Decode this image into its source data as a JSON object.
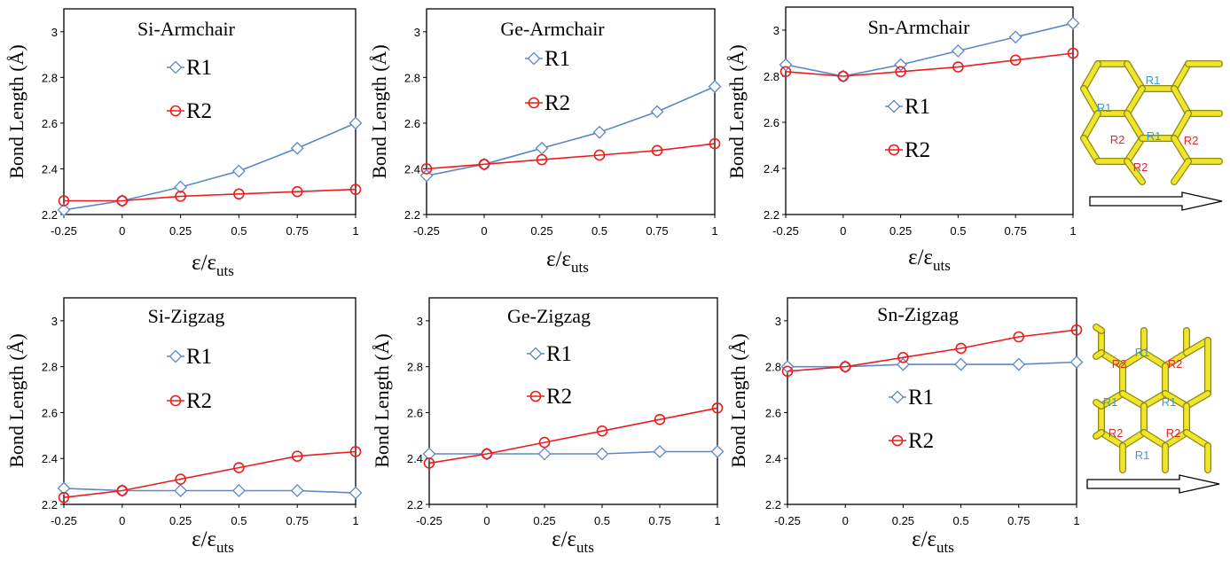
{
  "colors": {
    "R1": "#5b87c7",
    "R2": "#ee1c1c",
    "frame": "#000000",
    "honeycomb": "#f0e52a"
  },
  "chart_data": [
    {
      "type": "line",
      "title": "Si-Armchair",
      "ylabel": "Bond Length (Å)",
      "xlabel": "ε/ε",
      "xlabel_sub": "uts",
      "x": [
        -0.25,
        0,
        0.25,
        0.5,
        0.75,
        1
      ],
      "xticks": [
        "-0.25",
        "0",
        "0.25",
        "0.5",
        "0.75",
        "1"
      ],
      "ylim": [
        2.2,
        3.1
      ],
      "yticks": [
        "2.2",
        "2.4",
        "2.6",
        "2.8",
        "3"
      ],
      "series": [
        {
          "name": "R1",
          "values": [
            2.22,
            2.26,
            2.32,
            2.39,
            2.49,
            2.6
          ]
        },
        {
          "name": "R2",
          "values": [
            2.26,
            2.26,
            2.28,
            2.29,
            2.3,
            2.31
          ]
        }
      ]
    },
    {
      "type": "line",
      "title": "Ge-Armchair",
      "ylabel": "Bond Length (Å)",
      "xlabel": "ε/ε",
      "xlabel_sub": "uts",
      "x": [
        -0.25,
        0,
        0.25,
        0.5,
        0.75,
        1
      ],
      "xticks": [
        "-0.25",
        "0",
        "0.25",
        "0.5",
        "0.75",
        "1"
      ],
      "ylim": [
        2.2,
        3.1
      ],
      "yticks": [
        "2.2",
        "2.4",
        "2.6",
        "2.8",
        "3"
      ],
      "series": [
        {
          "name": "R1",
          "values": [
            2.37,
            2.42,
            2.49,
            2.56,
            2.65,
            2.76
          ]
        },
        {
          "name": "R2",
          "values": [
            2.4,
            2.42,
            2.44,
            2.46,
            2.48,
            2.51
          ]
        }
      ]
    },
    {
      "type": "line",
      "title": "Sn-Armchair",
      "ylabel": "Bond Length (Å)",
      "xlabel": "ε/ε",
      "xlabel_sub": "uts",
      "x": [
        -0.25,
        0,
        0.25,
        0.5,
        0.75,
        1
      ],
      "xticks": [
        "-0.25",
        "0",
        "0.25",
        "0.5",
        "0.75",
        "1"
      ],
      "ylim": [
        2.2,
        3.1
      ],
      "yticks": [
        "2.2",
        "2.4",
        "2.6",
        "2.8",
        "3"
      ],
      "series": [
        {
          "name": "R1",
          "values": [
            2.85,
            2.8,
            2.85,
            2.91,
            2.97,
            3.03
          ]
        },
        {
          "name": "R2",
          "values": [
            2.82,
            2.8,
            2.82,
            2.84,
            2.87,
            2.9
          ]
        }
      ]
    },
    {
      "type": "line",
      "title": "Si-Zigzag",
      "ylabel": "Bond Length (Å)",
      "xlabel": "ε/ε",
      "xlabel_sub": "uts",
      "x": [
        -0.25,
        0,
        0.25,
        0.5,
        0.75,
        1
      ],
      "xticks": [
        "-0.25",
        "0",
        "0.25",
        "0.5",
        "0.75",
        "1"
      ],
      "ylim": [
        2.2,
        3.1
      ],
      "yticks": [
        "2.2",
        "2.4",
        "2.6",
        "2.8",
        "3"
      ],
      "series": [
        {
          "name": "R1",
          "values": [
            2.27,
            2.26,
            2.26,
            2.26,
            2.26,
            2.25
          ]
        },
        {
          "name": "R2",
          "values": [
            2.23,
            2.26,
            2.31,
            2.36,
            2.41,
            2.43
          ]
        }
      ]
    },
    {
      "type": "line",
      "title": "Ge-Zigzag",
      "ylabel": "Bond Length (Å)",
      "xlabel": "ε/ε",
      "xlabel_sub": "uts",
      "x": [
        -0.25,
        0,
        0.25,
        0.5,
        0.75,
        1
      ],
      "xticks": [
        "-0.25",
        "0",
        "0.25",
        "0.5",
        "0.75",
        "1"
      ],
      "ylim": [
        2.2,
        3.1
      ],
      "yticks": [
        "2.2",
        "2.4",
        "2.6",
        "2.8",
        "3"
      ],
      "series": [
        {
          "name": "R1",
          "values": [
            2.42,
            2.42,
            2.42,
            2.42,
            2.43,
            2.43
          ]
        },
        {
          "name": "R2",
          "values": [
            2.38,
            2.42,
            2.47,
            2.52,
            2.57,
            2.62
          ]
        }
      ]
    },
    {
      "type": "line",
      "title": "Sn-Zigzag",
      "ylabel": "Bond Length (Å)",
      "xlabel": "ε/ε",
      "xlabel_sub": "uts",
      "x": [
        -0.25,
        0,
        0.25,
        0.5,
        0.75,
        1
      ],
      "xticks": [
        "-0.25",
        "0",
        "0.25",
        "0.5",
        "0.75",
        "1"
      ],
      "ylim": [
        2.2,
        3.1
      ],
      "yticks": [
        "2.2",
        "2.4",
        "2.6",
        "2.8",
        "3"
      ],
      "series": [
        {
          "name": "R1",
          "values": [
            2.8,
            2.8,
            2.81,
            2.81,
            2.81,
            2.82
          ]
        },
        {
          "name": "R2",
          "values": [
            2.78,
            2.8,
            2.84,
            2.88,
            2.93,
            2.96
          ]
        }
      ]
    }
  ],
  "structures": [
    {
      "name": "armchair",
      "labels": [
        "R1",
        "R1",
        "R1",
        "R2",
        "R2",
        "R2"
      ]
    },
    {
      "name": "zigzag",
      "labels": [
        "R1",
        "R2",
        "R2",
        "R1",
        "R1",
        "R2",
        "R2",
        "R1"
      ]
    }
  ]
}
